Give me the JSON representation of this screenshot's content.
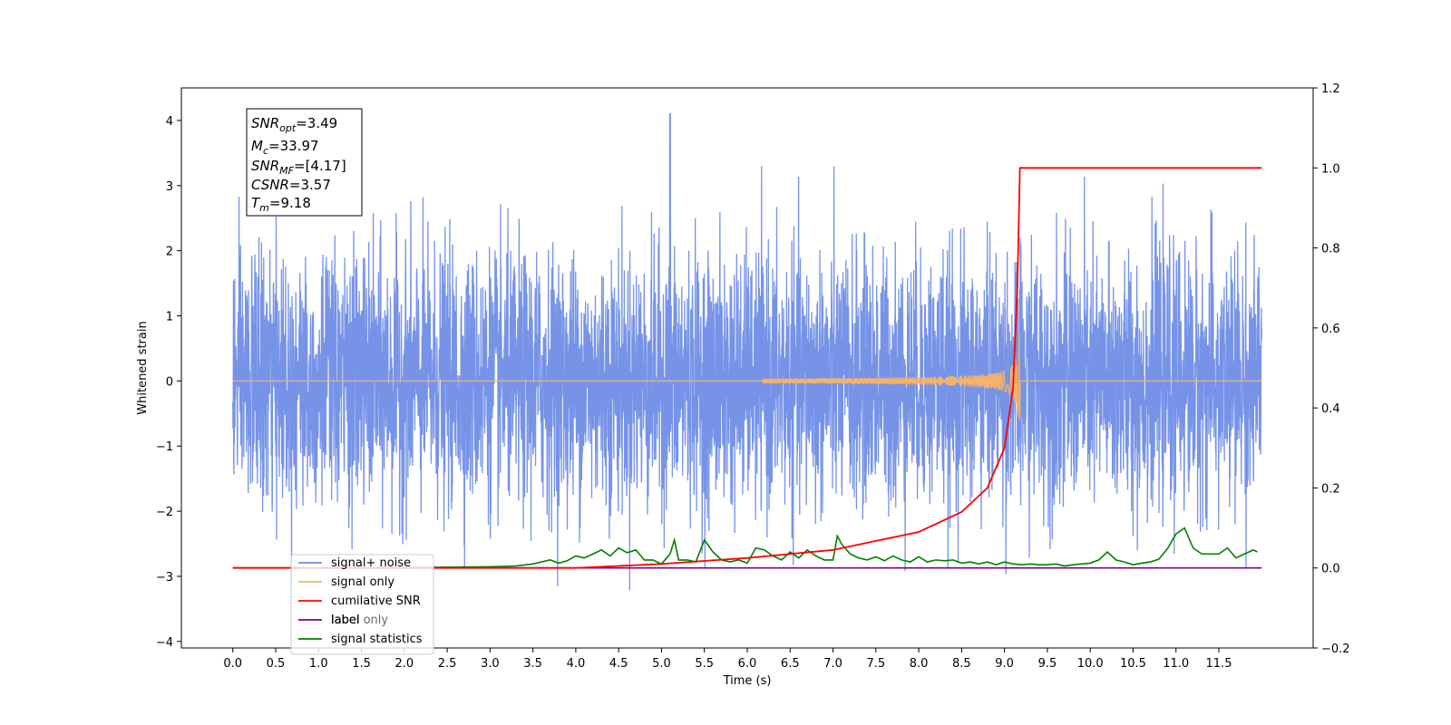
{
  "chart_data": {
    "type": "line",
    "xlabel": "Time (s)",
    "ylabel_left": "Whitened strain",
    "ylabel_right": "",
    "xlim": [
      -0.6,
      12.6
    ],
    "ylim_left": [
      -4.1,
      4.5
    ],
    "ylim_right": [
      -0.2,
      1.2
    ],
    "x_ticks": [
      "0.0",
      "0.5",
      "1.0",
      "1.5",
      "2.0",
      "2.5",
      "3.0",
      "3.5",
      "4.0",
      "4.5",
      "5.0",
      "5.5",
      "6.0",
      "6.5",
      "7.0",
      "7.5",
      "8.0",
      "8.5",
      "9.0",
      "9.5",
      "10.0",
      "10.5",
      "11.0",
      "11.5"
    ],
    "y_ticks_left": [
      "−4",
      "−3",
      "−2",
      "−1",
      "0",
      "1",
      "2",
      "3",
      "4"
    ],
    "y_ticks_right": [
      "−0.2",
      "0.0",
      "0.2",
      "0.4",
      "0.6",
      "0.8",
      "1.0",
      "1.2"
    ],
    "grid": false,
    "legend_position": "lower-left",
    "series": [
      {
        "name": "signal+ noise",
        "color": "#6f8de6",
        "axis": "left",
        "x_range": [
          0.0,
          12.0
        ],
        "amplitude": "white noise, approx ±2.5 with peaks to 4.1 near t=5.1"
      },
      {
        "name": "signal only",
        "color": "#f4b26a",
        "axis": "left",
        "x_range": [
          0.0,
          12.0
        ],
        "chirp_peak_time": 9.18,
        "chirp_peak_amplitude": 0.75
      },
      {
        "name": "cumilative SNR",
        "color": "#ff0000",
        "axis": "right",
        "x": [
          0.0,
          4.0,
          5.0,
          6.0,
          7.0,
          8.0,
          8.5,
          8.8,
          9.0,
          9.1,
          9.15,
          9.18,
          12.0
        ],
        "y": [
          0.0,
          0.0,
          0.01,
          0.025,
          0.045,
          0.09,
          0.14,
          0.2,
          0.3,
          0.45,
          0.7,
          1.0,
          1.0
        ]
      },
      {
        "name": "label",
        "color": "#800080",
        "axis": "right",
        "x": [
          0.0,
          12.0
        ],
        "y": [
          0.0,
          0.0
        ]
      },
      {
        "name": "label only",
        "color": "#cfcfcf",
        "axis": "right",
        "x": [],
        "y": []
      },
      {
        "name": "signal statistics",
        "color": "#008000",
        "axis": "right",
        "x": [
          0.0,
          0.5,
          1.0,
          1.5,
          2.0,
          2.5,
          3.0,
          3.3,
          3.5,
          3.7,
          3.8,
          3.9,
          4.0,
          4.1,
          4.2,
          4.3,
          4.4,
          4.5,
          4.6,
          4.7,
          4.8,
          4.9,
          5.0,
          5.1,
          5.15,
          5.2,
          5.3,
          5.4,
          5.5,
          5.6,
          5.7,
          5.8,
          5.9,
          6.0,
          6.1,
          6.2,
          6.3,
          6.4,
          6.5,
          6.6,
          6.7,
          6.8,
          6.9,
          7.0,
          7.05,
          7.1,
          7.2,
          7.3,
          7.4,
          7.5,
          7.6,
          7.7,
          7.8,
          7.9,
          8.0,
          8.1,
          8.2,
          8.3,
          8.4,
          8.5,
          8.6,
          8.7,
          8.8,
          8.9,
          9.0,
          9.1,
          9.2,
          9.3,
          9.4,
          9.5,
          9.6,
          9.7,
          9.8,
          9.9,
          10.0,
          10.1,
          10.2,
          10.3,
          10.4,
          10.5,
          10.6,
          10.7,
          10.8,
          10.9,
          11.0,
          11.1,
          11.2,
          11.3,
          11.4,
          11.5,
          11.6,
          11.7,
          11.8,
          11.9,
          11.95
        ],
        "y": [
          0.0,
          0.0,
          0.0,
          0.0,
          0.001,
          0.002,
          0.003,
          0.005,
          0.01,
          0.02,
          0.012,
          0.018,
          0.03,
          0.025,
          0.035,
          0.045,
          0.03,
          0.05,
          0.038,
          0.045,
          0.02,
          0.02,
          0.01,
          0.035,
          0.07,
          0.02,
          0.02,
          0.015,
          0.07,
          0.04,
          0.02,
          0.015,
          0.02,
          0.012,
          0.05,
          0.045,
          0.03,
          0.02,
          0.04,
          0.025,
          0.045,
          0.03,
          0.02,
          0.02,
          0.08,
          0.06,
          0.035,
          0.025,
          0.02,
          0.028,
          0.018,
          0.03,
          0.02,
          0.015,
          0.028,
          0.015,
          0.02,
          0.018,
          0.02,
          0.012,
          0.015,
          0.01,
          0.015,
          0.008,
          0.015,
          0.01,
          0.008,
          0.01,
          0.008,
          0.008,
          0.01,
          0.005,
          0.008,
          0.01,
          0.012,
          0.02,
          0.04,
          0.02,
          0.015,
          0.008,
          0.012,
          0.015,
          0.022,
          0.048,
          0.085,
          0.1,
          0.05,
          0.035,
          0.035,
          0.035,
          0.05,
          0.025,
          0.035,
          0.045,
          0.04
        ]
      }
    ],
    "annotation_box": {
      "lines": [
        {
          "base": "SNR",
          "sub": "opt",
          "value": "=3.49"
        },
        {
          "base": "M",
          "sub": "c",
          "value": "=33.97"
        },
        {
          "base": "SNR",
          "sub": "MF",
          "value": "=[4.17]"
        },
        {
          "base": "CSNR",
          "sub": "",
          "value": "=3.57"
        },
        {
          "base": "T",
          "sub": "m",
          "value": "=9.18"
        }
      ]
    }
  }
}
